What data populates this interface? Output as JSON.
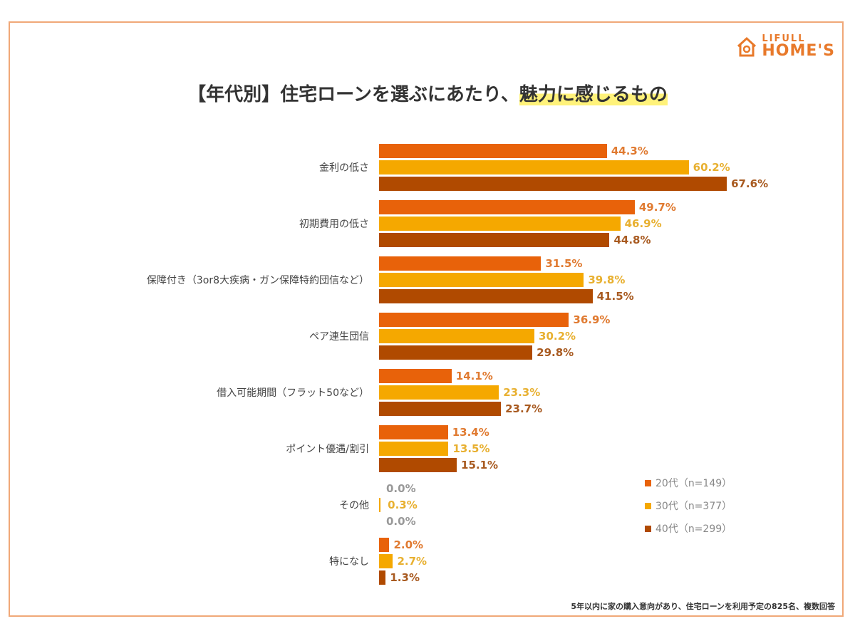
{
  "logo": {
    "line1": "LIFULL",
    "line2": "HOME'S"
  },
  "chart_data": {
    "type": "bar",
    "orientation": "horizontal",
    "title_prefix": "【年代別】住宅ローンを選ぶにあたり、",
    "title_highlight": "魅力に感じるもの",
    "categories": [
      "金利の低さ",
      "初期費用の低さ",
      "保障付き（3or8大疾病・ガン保障特約団信など）",
      "ペア連生団信",
      "借入可能期間（フラット50など）",
      "ポイント優遇/割引",
      "その他",
      "特になし"
    ],
    "series": [
      {
        "name": "20代（n=149）",
        "color": "#e8620a",
        "label_color": "#e07a30",
        "values": [
          44.3,
          49.7,
          31.5,
          36.9,
          14.1,
          13.4,
          0.0,
          2.0
        ]
      },
      {
        "name": "30代（n=377）",
        "color": "#f5a800",
        "label_color": "#e8b030",
        "values": [
          60.2,
          46.9,
          39.8,
          30.2,
          23.3,
          13.5,
          0.3,
          2.7
        ]
      },
      {
        "name": "40代（n=299）",
        "color": "#b04a00",
        "label_color": "#a85a20",
        "values": [
          67.6,
          44.8,
          41.5,
          29.8,
          23.7,
          15.1,
          0.0,
          1.3
        ]
      }
    ],
    "unit": "%",
    "legend_position": "bottom-right",
    "grid": false,
    "footnote": "5年以内に家の購入意向があり、住宅ローンを利用予定の825名、複数回答"
  }
}
